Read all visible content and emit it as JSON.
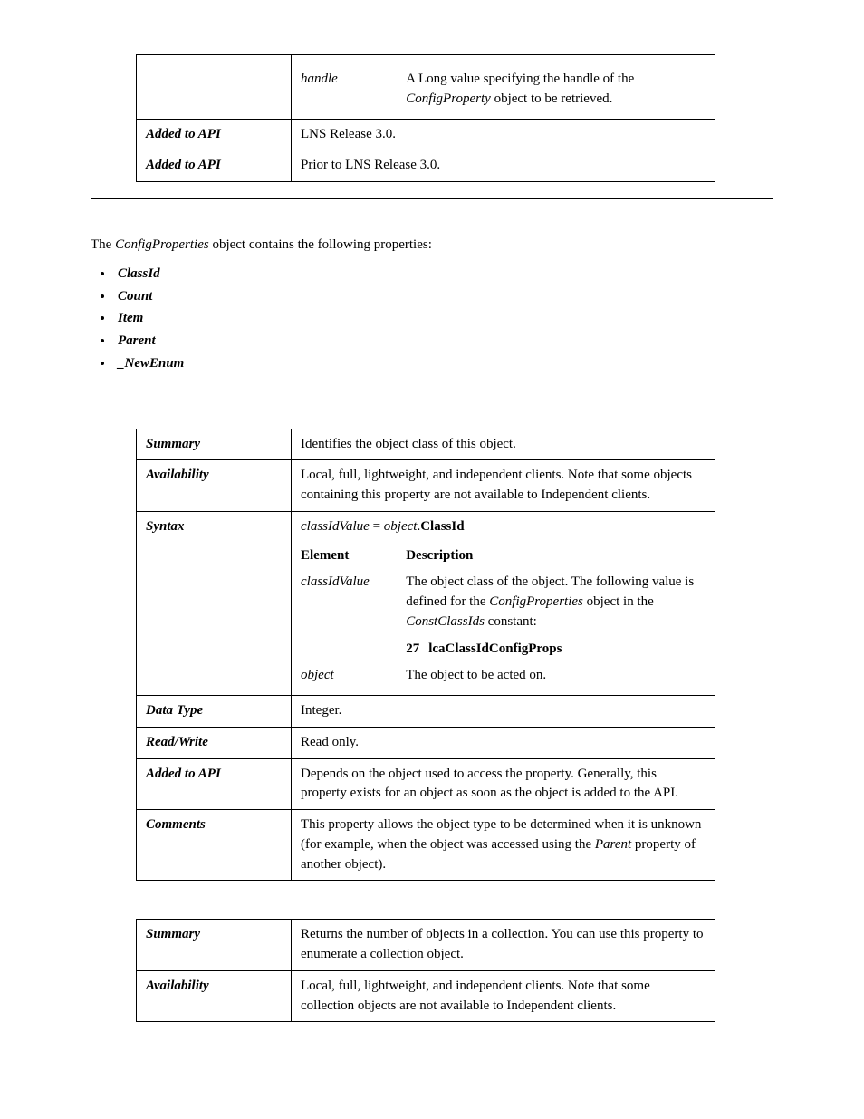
{
  "table1": {
    "row1": {
      "label": "",
      "param": "handle",
      "desc_pre": "A Long value specifying the handle of the ",
      "desc_em": "ConfigProperty",
      "desc_post": " object to be retrieved."
    },
    "row2": {
      "label": "Added to API",
      "value": "LNS Release 3.0."
    },
    "row3": {
      "label": "Added to API",
      "value": "Prior to LNS Release 3.0."
    }
  },
  "intro": {
    "pre": "The ",
    "em": "ConfigProperties",
    "post": " object contains the following properties:"
  },
  "properties_list": {
    "p0": "ClassId",
    "p1": "Count",
    "p2": "Item",
    "p3": "Parent",
    "p4": "_NewEnum"
  },
  "table2": {
    "summary": {
      "label": "Summary",
      "value": "Identifies the object class of this object."
    },
    "availability": {
      "label": "Availability",
      "value": "Local, full, lightweight, and independent clients. Note that some objects containing this property are not available to Independent clients."
    },
    "syntax": {
      "label": "Syntax",
      "line_lhs": "classIdValue",
      "line_eq": " = ",
      "line_obj": "object",
      "line_dot": ".",
      "line_prop": "ClassId",
      "hdr_element": "Element",
      "hdr_desc": "Description",
      "el1": "classIdValue",
      "desc1_pre": "The object class of the object.  The following value is defined for the ",
      "desc1_em1": "ConfigProperties",
      "desc1_mid": " object in the ",
      "desc1_em2": "ConstClassIds",
      "desc1_post": " constant:",
      "const_num": "27",
      "const_name": "lcaClassIdConfigProps",
      "el2": "object",
      "desc2": "The object to be acted on."
    },
    "datatype": {
      "label": "Data Type",
      "value": "Integer."
    },
    "readwrite": {
      "label": "Read/Write",
      "value": "Read only."
    },
    "addedapi": {
      "label": "Added to API",
      "value": "Depends on the object used to access the property. Generally, this property exists for an object as soon as the object is added to the API."
    },
    "comments": {
      "label": "Comments",
      "pre": "This property allows the object type to be determined when it is unknown (for example, when the object was accessed using the ",
      "em": "Parent",
      "post": " property of another object)."
    }
  },
  "table3": {
    "summary": {
      "label": "Summary",
      "value": "Returns the number of objects in a collection. You can use this property to enumerate a collection object."
    },
    "availability": {
      "label": "Availability",
      "value": "Local, full, lightweight, and independent clients. Note that some collection objects are not available to Independent clients."
    }
  }
}
